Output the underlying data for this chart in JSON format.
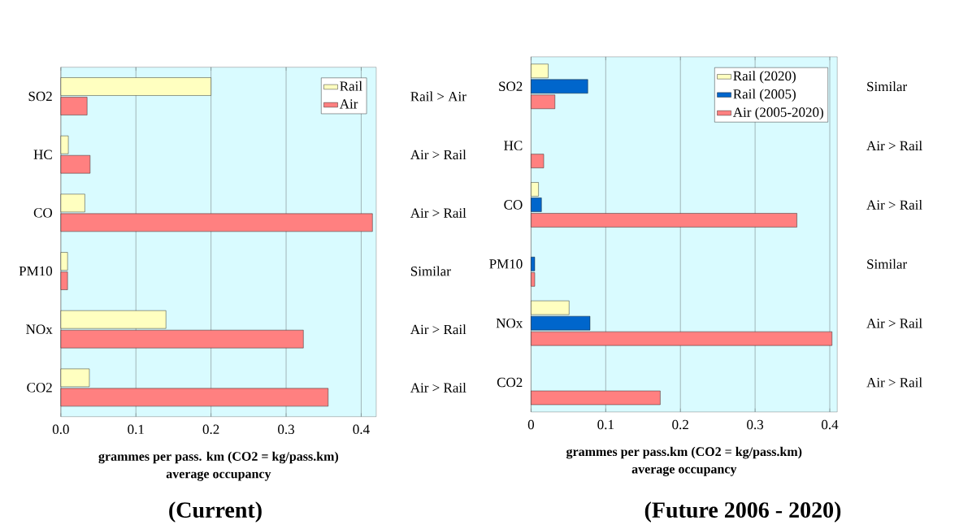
{
  "chart_data": [
    {
      "type": "bar",
      "orientation": "horizontal",
      "title": "(Current)",
      "xlabel": "grammes  per pass. km (CO2 = kg/pass.km)",
      "categories": [
        "SO2",
        "HC",
        "CO",
        "PM10",
        "NOx",
        "CO2"
      ],
      "series": [
        {
          "name": "Rail",
          "color": "#ffffc0",
          "values": [
            0.2,
            0.01,
            0.032,
            0.009,
            0.14,
            0.038
          ]
        },
        {
          "name": "Air",
          "color": "#ff8080",
          "values": [
            0.035,
            0.039,
            0.415,
            0.009,
            0.323,
            0.356
          ]
        }
      ],
      "xlim": [
        0,
        0.42
      ],
      "xticks": [
        {
          "value": 0,
          "label": "0.0"
        },
        0.1,
        0.2,
        0.3,
        0.4
      ],
      "grid": "x",
      "legend": "top right",
      "annotations": [
        "average occupancy",
        "Rail > Air",
        "Air > Rail",
        "Air > Rail",
        "Similar",
        "Air  > Rail",
        "Air > Rail"
      ]
    },
    {
      "type": "bar",
      "orientation": "horizontal",
      "title": "(Future 2006 - 2020)",
      "xlabel": "grammes  per pass.km (CO2 = kg/pass.km)",
      "categories": [
        "SO2",
        "HC",
        "CO",
        "PM10",
        "NOx",
        "CO2"
      ],
      "series": [
        {
          "name": "Rail (2020)",
          "color": "#ffffc0",
          "values": [
            0.023,
            null,
            0.01,
            null,
            0.051,
            null
          ]
        },
        {
          "name": "Rail (2005)",
          "color": "#0066cc",
          "values": [
            0.076,
            null,
            0.014,
            0.005,
            0.079,
            null
          ]
        },
        {
          "name": "Air (2005-2020)",
          "color": "#ff8080",
          "values": [
            0.032,
            0.017,
            0.356,
            0.005,
            0.403,
            0.173
          ]
        }
      ],
      "xlim": [
        0,
        0.41
      ],
      "xticks": [
        0,
        0.1,
        0.2,
        0.3,
        0.4
      ],
      "grid": "x",
      "legend": "top right",
      "annotations": [
        "average occupancy",
        "Similar",
        "Air > Rail",
        "Air > Rail",
        "Similar",
        "Air > Rail",
        "Air > Rail"
      ]
    }
  ]
}
